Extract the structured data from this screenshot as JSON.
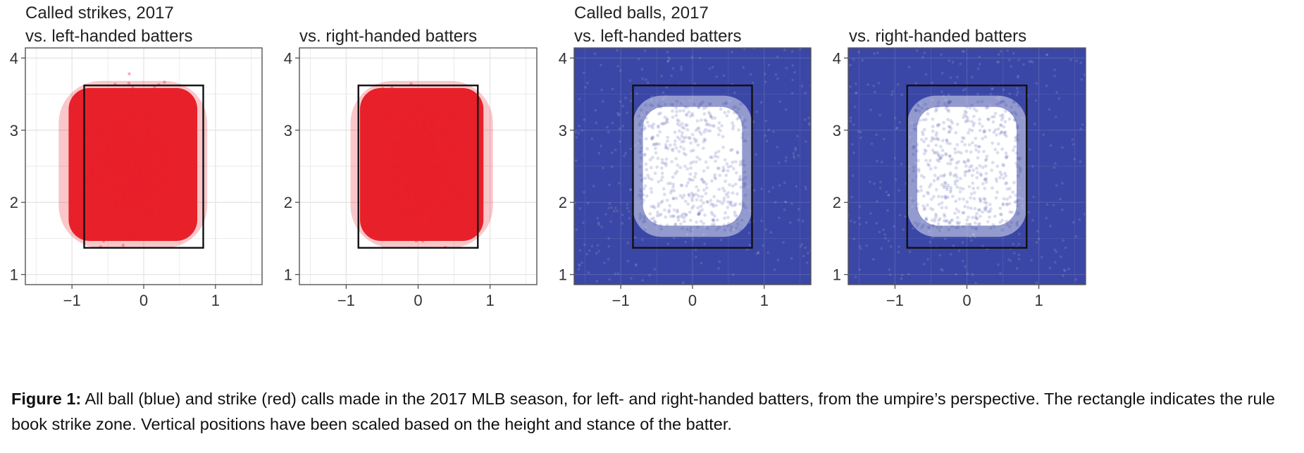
{
  "caption": {
    "label": "Figure 1:",
    "text": "All ball (blue) and strike (red) calls made in the 2017 MLB season, for left- and right-handed batters, from the umpire’s perspective. The rectangle indicates the rule book strike zone. Vertical positions have been scaled based on the height and stance of the batter."
  },
  "colors": {
    "strike": "#e8202a",
    "ball": "#3b47a6",
    "zone": "#111111",
    "grid": "#e3e3e3"
  },
  "chart_data": [
    {
      "type": "scatter",
      "heading": [
        "Called strikes, 2017",
        "vs. left-handed batters"
      ],
      "call": "strike",
      "xlim": [
        -1.65,
        1.65
      ],
      "ylim": [
        0.86,
        4.14
      ],
      "x_ticks": [
        {
          "v": -1,
          "label": "−1"
        },
        {
          "v": 0,
          "label": "0"
        },
        {
          "v": 1,
          "label": "1"
        }
      ],
      "y_ticks": [
        {
          "v": 1,
          "label": "1"
        },
        {
          "v": 2,
          "label": "2"
        },
        {
          "v": 3,
          "label": "3"
        },
        {
          "v": 4,
          "label": "4"
        }
      ],
      "grid": true,
      "strike_zone": {
        "x": [
          -0.83,
          0.83
        ],
        "y": [
          1.37,
          3.62
        ]
      },
      "point_cloud": {
        "x_center": -0.15,
        "x_halfwidth": 1.15,
        "y_range": [
          1.25,
          3.8
        ]
      }
    },
    {
      "type": "scatter",
      "heading": [
        "",
        "vs. right-handed batters"
      ],
      "call": "strike",
      "xlim": [
        -1.65,
        1.65
      ],
      "ylim": [
        0.86,
        4.14
      ],
      "x_ticks": [
        {
          "v": -1,
          "label": "−1"
        },
        {
          "v": 0,
          "label": "0"
        },
        {
          "v": 1,
          "label": "1"
        }
      ],
      "y_ticks": [
        {
          "v": 1,
          "label": "1"
        },
        {
          "v": 2,
          "label": "2"
        },
        {
          "v": 3,
          "label": "3"
        },
        {
          "v": 4,
          "label": "4"
        }
      ],
      "grid": true,
      "strike_zone": {
        "x": [
          -0.83,
          0.83
        ],
        "y": [
          1.37,
          3.62
        ]
      },
      "point_cloud": {
        "x_center": 0.05,
        "x_halfwidth": 1.1,
        "y_range": [
          1.25,
          3.8
        ]
      }
    },
    {
      "type": "scatter",
      "heading": [
        "Called balls, 2017",
        "vs. left-handed batters"
      ],
      "call": "ball",
      "xlim": [
        -1.65,
        1.65
      ],
      "ylim": [
        0.86,
        4.14
      ],
      "x_ticks": [
        {
          "v": -1,
          "label": "−1"
        },
        {
          "v": 0,
          "label": "0"
        },
        {
          "v": 1,
          "label": "1"
        }
      ],
      "y_ticks": [
        {
          "v": 1,
          "label": "1"
        },
        {
          "v": 2,
          "label": "2"
        },
        {
          "v": 3,
          "label": "3"
        },
        {
          "v": 4,
          "label": "4"
        }
      ],
      "grid": true,
      "strike_zone": {
        "x": [
          -0.83,
          0.83
        ],
        "y": [
          1.37,
          3.62
        ]
      },
      "empty_region": {
        "x": [
          -0.75,
          0.75
        ],
        "y": [
          1.6,
          3.4
        ]
      }
    },
    {
      "type": "scatter",
      "heading": [
        "",
        "vs. right-handed batters"
      ],
      "call": "ball",
      "xlim": [
        -1.65,
        1.65
      ],
      "ylim": [
        0.86,
        4.14
      ],
      "x_ticks": [
        {
          "v": -1,
          "label": "−1"
        },
        {
          "v": 0,
          "label": "0"
        },
        {
          "v": 1,
          "label": "1"
        }
      ],
      "y_ticks": [
        {
          "v": 1,
          "label": "1"
        },
        {
          "v": 2,
          "label": "2"
        },
        {
          "v": 3,
          "label": "3"
        },
        {
          "v": 4,
          "label": "4"
        }
      ],
      "grid": true,
      "strike_zone": {
        "x": [
          -0.83,
          0.83
        ],
        "y": [
          1.37,
          3.62
        ]
      },
      "empty_region": {
        "x": [
          -0.75,
          0.75
        ],
        "y": [
          1.6,
          3.4
        ]
      }
    }
  ]
}
